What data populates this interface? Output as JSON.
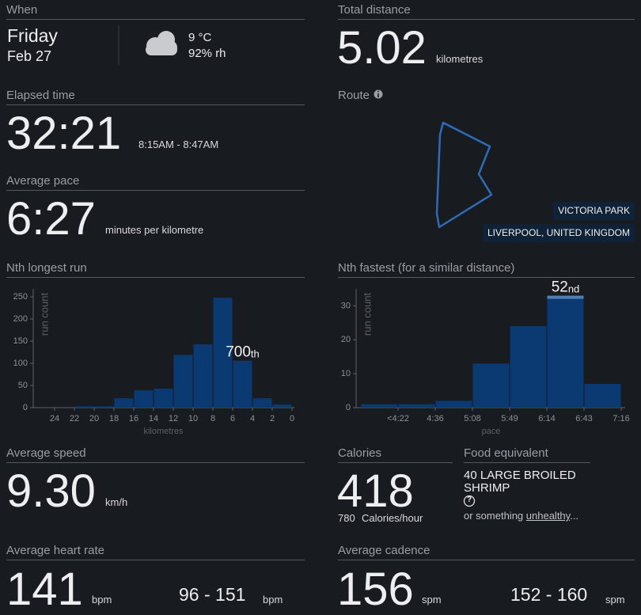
{
  "when": {
    "label": "When",
    "day": "Friday",
    "date": "Feb 27",
    "temperature": "9 °C",
    "humidity": "92% rh"
  },
  "total_distance": {
    "label": "Total distance",
    "value": "5.02",
    "unit": "kilometres"
  },
  "elapsed_time": {
    "label": "Elapsed time",
    "value": "32:21",
    "range": "8:15AM - 8:47AM"
  },
  "route": {
    "label": "Route",
    "place": "VICTORIA PARK",
    "city": "LIVERPOOL, UNITED KINGDOM"
  },
  "average_pace": {
    "label": "Average pace",
    "value": "6:27",
    "unit": "minutes per kilometre"
  },
  "chart_data": [
    {
      "type": "histogram",
      "title": "Nth longest run",
      "x_label": "kilometres",
      "y_label": "run count",
      "bins": [
        22,
        20,
        18,
        16,
        14,
        12,
        10,
        8,
        6,
        4,
        2,
        0
      ],
      "values": [
        3,
        3,
        21,
        39,
        43,
        119,
        143,
        248,
        106,
        21,
        7
      ],
      "color": "#0b3a72",
      "xlim": [
        26,
        0
      ],
      "xticks": [
        24,
        22,
        20,
        18,
        16,
        14,
        12,
        10,
        8,
        6,
        4,
        2,
        0
      ],
      "ylim": [
        0,
        268
      ],
      "yticks": [
        0,
        50,
        100,
        150,
        200,
        250
      ],
      "highlight": 8,
      "highlight_band": false,
      "annotation": {
        "text": "700",
        "suffix": "th"
      }
    },
    {
      "type": "histogram",
      "title": "Nth fastest (for a similar distance)",
      "x_label": "pace",
      "y_label": "run count",
      "bins": [
        null,
        "<4:22",
        "4:36",
        "5:08",
        "5:49",
        "6:14",
        "6:43",
        "7:16"
      ],
      "values": [
        1,
        1,
        2,
        13,
        24,
        33,
        7
      ],
      "color": "#0b3a72",
      "ylim": [
        0,
        35
      ],
      "yticks": [
        0,
        10,
        20,
        30
      ],
      "highlight": 5,
      "highlight_band": true,
      "annotation": {
        "text": "52",
        "suffix": "nd"
      }
    }
  ],
  "average_speed": {
    "label": "Average speed",
    "value": "9.30",
    "unit": "km/h"
  },
  "calories": {
    "label": "Calories",
    "value": "418",
    "rate": "780",
    "rate_unit": "Calories/hour"
  },
  "food_equivalent": {
    "label": "Food equivalent",
    "food": "40 LARGE BROILED SHRIMP",
    "help": "?",
    "prefix": "or something",
    "link": "unhealthy",
    "suffix": "..."
  },
  "average_heart_rate": {
    "label": "Average heart rate",
    "value": "141",
    "unit": "bpm",
    "range": "96 - 151",
    "range_unit": "bpm"
  },
  "average_cadence": {
    "label": "Average cadence",
    "value": "156",
    "unit": "spm",
    "range": "152 - 160",
    "range_unit": "spm"
  }
}
